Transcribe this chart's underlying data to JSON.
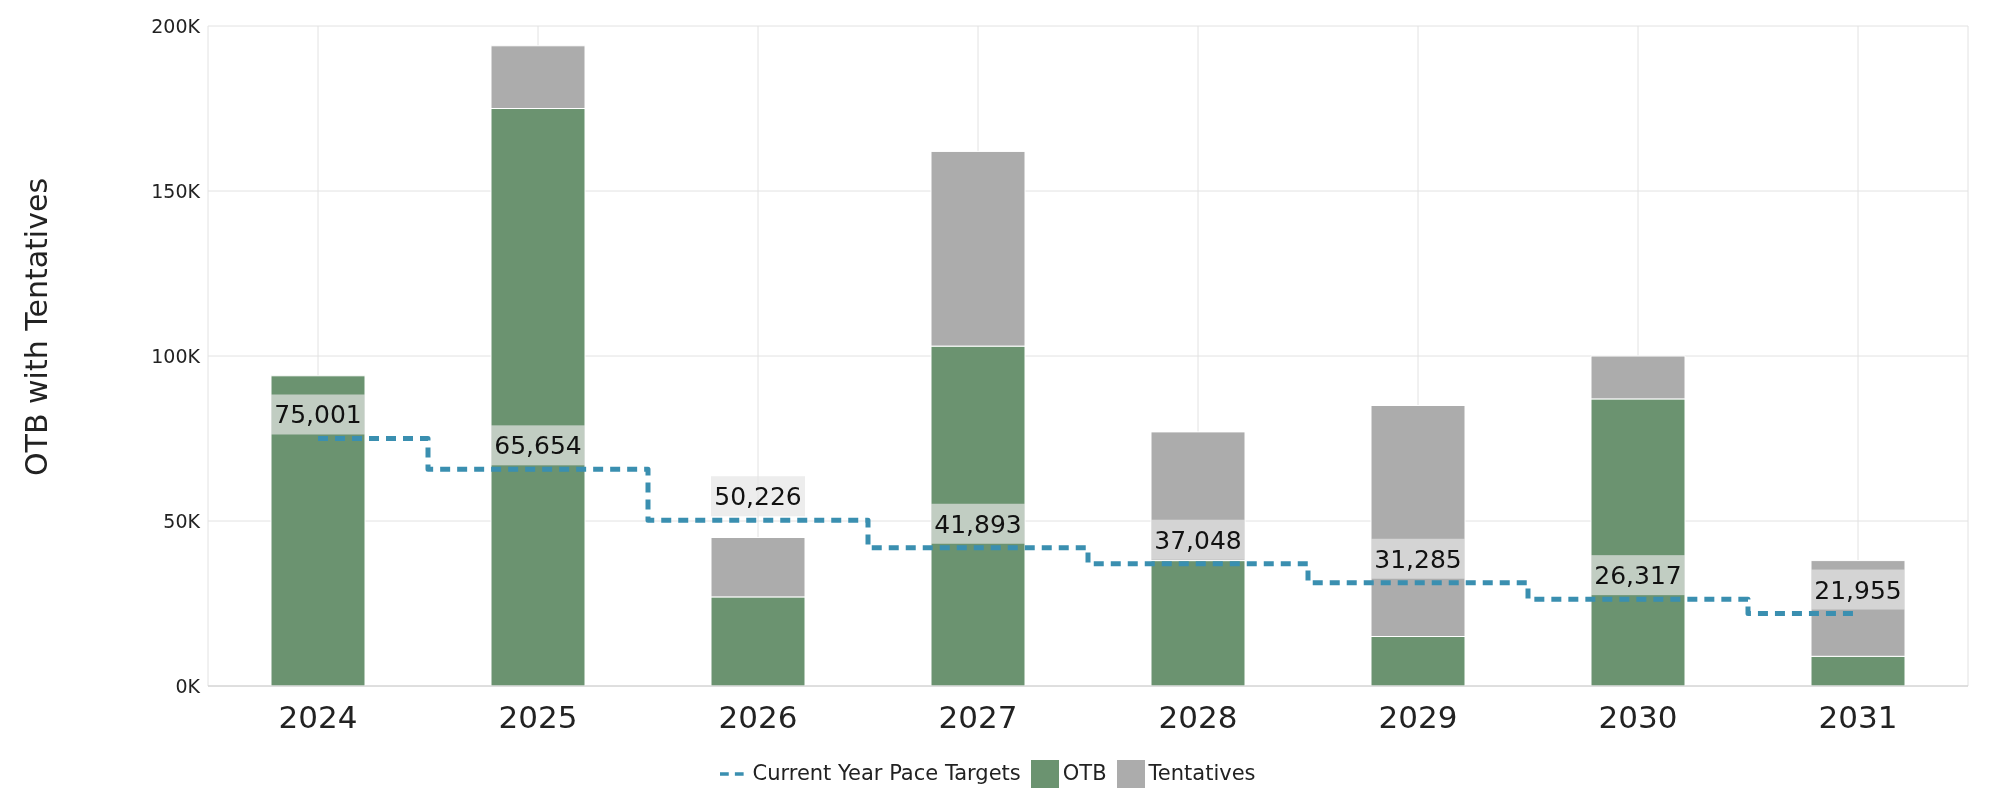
{
  "chart_data": {
    "type": "bar",
    "stacked": true,
    "ylabel": "OTB with Tentatives",
    "categories": [
      "2024",
      "2025",
      "2026",
      "2027",
      "2028",
      "2029",
      "2030",
      "2031"
    ],
    "series": [
      {
        "name": "OTB",
        "color": "#6b9370",
        "values": [
          94000,
          175000,
          27000,
          103000,
          38000,
          15000,
          87000,
          9000
        ]
      },
      {
        "name": "Tentatives",
        "color": "#acacac",
        "values": [
          null,
          19000,
          18000,
          59000,
          39000,
          70000,
          13000,
          29000
        ]
      },
      {
        "name": "Current Year Pace Targets",
        "type": "step",
        "color": "#3a8fb0",
        "line_style": "dashed",
        "values": [
          75001,
          65654,
          50226,
          41893,
          37048,
          31285,
          26317,
          21955
        ],
        "value_labels": [
          "75,001",
          "65,654",
          "50,226",
          "41,893",
          "37,048",
          "31,285",
          "26,317",
          "21,955"
        ]
      }
    ],
    "ylim": [
      0,
      200000
    ],
    "yticks": [
      {
        "value": 0,
        "label": "0K"
      },
      {
        "value": 50000,
        "label": "50K"
      },
      {
        "value": 100000,
        "label": "100K"
      },
      {
        "value": 150000,
        "label": "150K"
      },
      {
        "value": 200000,
        "label": "200K"
      }
    ],
    "grid": true,
    "legend": "bottom"
  }
}
